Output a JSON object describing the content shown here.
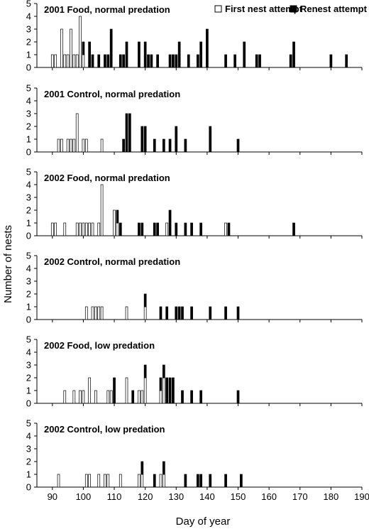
{
  "chart_data": {
    "type": "bar",
    "xlabel": "Day of year",
    "ylabel": "Number of nests",
    "xlim": [
      85,
      190
    ],
    "ylim": [
      0,
      5
    ],
    "x_ticks": [
      90,
      100,
      110,
      120,
      130,
      140,
      150,
      160,
      170,
      180,
      190
    ],
    "y_ticks": [
      0,
      1,
      2,
      3,
      4,
      5
    ],
    "grid": false,
    "legend_position": "top-right",
    "stacked": true,
    "series": [
      {
        "name": "First nest attempt",
        "color": "#ffffff"
      },
      {
        "name": "Renest attempt",
        "color": "#000000"
      }
    ],
    "panels": [
      {
        "title": "2001 Food, normal predation",
        "first": [
          [
            90,
            1
          ],
          [
            91,
            1
          ],
          [
            93,
            3
          ],
          [
            94,
            1
          ],
          [
            95,
            1
          ],
          [
            96,
            3
          ],
          [
            97,
            1
          ],
          [
            98,
            1
          ],
          [
            99,
            4
          ],
          [
            100,
            1
          ]
        ],
        "renest": [
          [
            100,
            1
          ],
          [
            102,
            2
          ],
          [
            103,
            1
          ],
          [
            105,
            1
          ],
          [
            107,
            1
          ],
          [
            108,
            1
          ],
          [
            109,
            3
          ],
          [
            112,
            1
          ],
          [
            113,
            1
          ],
          [
            114,
            2
          ],
          [
            118,
            2
          ],
          [
            120,
            2
          ],
          [
            121,
            1
          ],
          [
            122,
            1
          ],
          [
            124,
            1
          ],
          [
            128,
            1
          ],
          [
            129,
            1
          ],
          [
            130,
            1
          ],
          [
            131,
            2
          ],
          [
            134,
            1
          ],
          [
            137,
            1
          ],
          [
            138,
            2
          ],
          [
            140,
            3
          ],
          [
            146,
            1
          ],
          [
            149,
            1
          ],
          [
            152,
            2
          ],
          [
            156,
            1
          ],
          [
            157,
            1
          ],
          [
            167,
            1
          ],
          [
            168,
            2
          ],
          [
            180,
            1
          ],
          [
            185,
            1
          ]
        ]
      },
      {
        "title": "2001 Control, normal predation",
        "first": [
          [
            92,
            1
          ],
          [
            93,
            1
          ],
          [
            95,
            1
          ],
          [
            96,
            1
          ],
          [
            97,
            1
          ],
          [
            98,
            3
          ],
          [
            100,
            1
          ],
          [
            101,
            1
          ],
          [
            106,
            1
          ]
        ],
        "renest": [
          [
            113,
            1
          ],
          [
            114,
            3
          ],
          [
            115,
            3
          ],
          [
            119,
            2
          ],
          [
            120,
            2
          ],
          [
            123,
            1
          ],
          [
            126,
            1
          ],
          [
            128,
            1
          ],
          [
            130,
            2
          ],
          [
            133,
            1
          ],
          [
            141,
            2
          ],
          [
            150,
            1
          ]
        ]
      },
      {
        "title": "2002 Food, normal predation",
        "first": [
          [
            90,
            1
          ],
          [
            91,
            1
          ],
          [
            94,
            1
          ],
          [
            98,
            1
          ],
          [
            99,
            1
          ],
          [
            100,
            1
          ],
          [
            101,
            1
          ],
          [
            102,
            1
          ],
          [
            103,
            1
          ],
          [
            105,
            1
          ],
          [
            106,
            4
          ],
          [
            110,
            2
          ],
          [
            111,
            1
          ],
          [
            127,
            1
          ],
          [
            146,
            1
          ]
        ],
        "renest": [
          [
            111,
            1
          ],
          [
            112,
            1
          ],
          [
            118,
            1
          ],
          [
            119,
            1
          ],
          [
            123,
            1
          ],
          [
            124,
            1
          ],
          [
            128,
            2
          ],
          [
            130,
            1
          ],
          [
            133,
            1
          ],
          [
            135,
            1
          ],
          [
            138,
            1
          ],
          [
            147,
            1
          ],
          [
            168,
            1
          ]
        ]
      },
      {
        "title": "2002 Control, normal predation",
        "first": [
          [
            101,
            1
          ],
          [
            103,
            1
          ],
          [
            104,
            1
          ],
          [
            105,
            1
          ],
          [
            106,
            1
          ],
          [
            114,
            1
          ],
          [
            120,
            1
          ]
        ],
        "renest": [
          [
            120,
            1
          ],
          [
            125,
            1
          ],
          [
            127,
            1
          ],
          [
            130,
            1
          ],
          [
            131,
            1
          ],
          [
            132,
            1
          ],
          [
            135,
            1
          ],
          [
            141,
            1
          ],
          [
            146,
            1
          ],
          [
            150,
            1
          ]
        ]
      },
      {
        "title": "2002 Food, low predation",
        "first": [
          [
            94,
            1
          ],
          [
            97,
            1
          ],
          [
            99,
            1
          ],
          [
            100,
            1
          ],
          [
            102,
            2
          ],
          [
            104,
            1
          ],
          [
            108,
            1
          ],
          [
            109,
            1
          ],
          [
            114,
            2
          ],
          [
            118,
            1
          ],
          [
            119,
            1
          ],
          [
            120,
            2
          ],
          [
            125,
            1
          ],
          [
            126,
            2
          ]
        ],
        "renest": [
          [
            110,
            2
          ],
          [
            116,
            1
          ],
          [
            120,
            1
          ],
          [
            125,
            1
          ],
          [
            126,
            1
          ],
          [
            127,
            2
          ],
          [
            128,
            2
          ],
          [
            129,
            2
          ],
          [
            132,
            1
          ],
          [
            135,
            1
          ],
          [
            138,
            1
          ],
          [
            150,
            1
          ]
        ]
      },
      {
        "title": "2002 Control, low predation",
        "first": [
          [
            92,
            1
          ],
          [
            101,
            1
          ],
          [
            102,
            1
          ],
          [
            105,
            1
          ],
          [
            107,
            1
          ],
          [
            108,
            1
          ],
          [
            112,
            1
          ],
          [
            118,
            1
          ],
          [
            119,
            1
          ],
          [
            125,
            1
          ],
          [
            126,
            1
          ]
        ],
        "renest": [
          [
            119,
            1
          ],
          [
            123,
            1
          ],
          [
            126,
            1
          ],
          [
            133,
            1
          ],
          [
            137,
            1
          ],
          [
            138,
            1
          ],
          [
            141,
            1
          ],
          [
            146,
            1
          ],
          [
            151,
            1
          ]
        ]
      }
    ]
  }
}
